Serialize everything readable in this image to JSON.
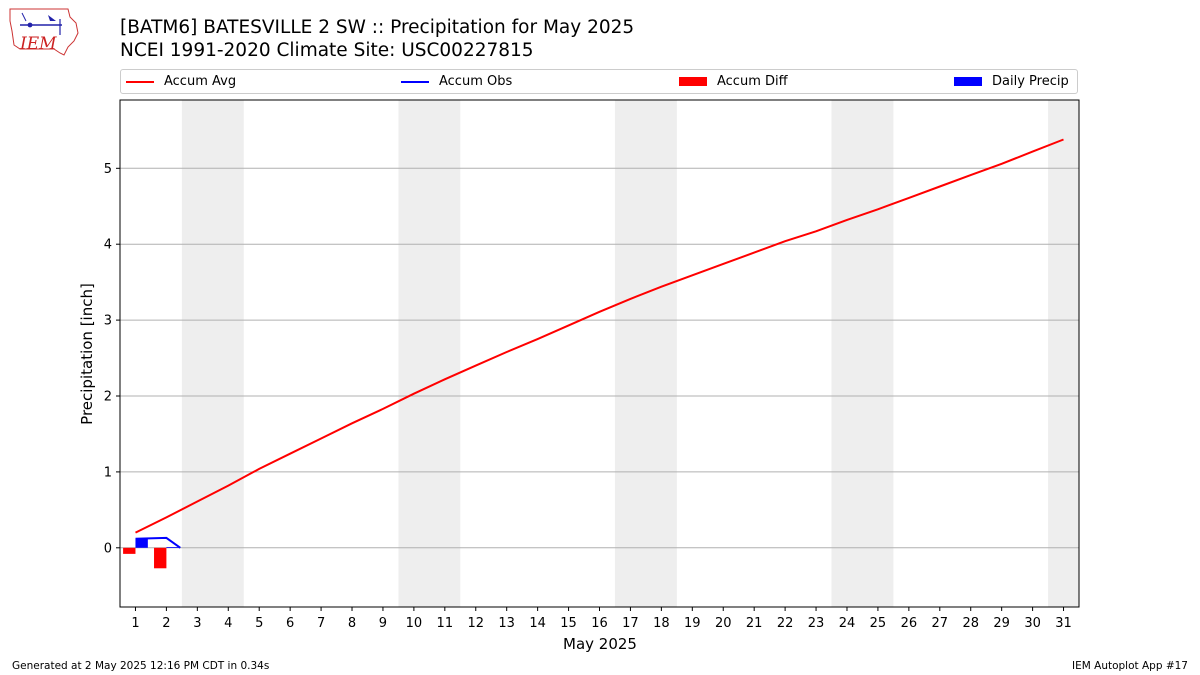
{
  "header": {
    "logo_text": "IEM",
    "title_line1": "[BATM6] BATESVILLE 2 SW :: Precipitation for May 2025",
    "title_line2": "NCEI 1991-2020 Climate Site: USC00227815"
  },
  "legend": {
    "placement": "top",
    "items": [
      {
        "label": "Accum Avg",
        "kind": "line",
        "color": "#ff0000"
      },
      {
        "label": "Accum Obs",
        "kind": "line",
        "color": "#0000ff"
      },
      {
        "label": "Accum Diff",
        "kind": "box",
        "color": "#ff0000"
      },
      {
        "label": "Daily Precip",
        "kind": "box",
        "color": "#0000ff"
      }
    ]
  },
  "footer": {
    "left": "Generated at 2 May 2025 12:16 PM CDT in 0.34s",
    "right": "IEM Autoplot App #17"
  },
  "chart_data": {
    "type": "line",
    "title": "[BATM6] BATESVILLE 2 SW :: Precipitation for May 2025",
    "subtitle": "NCEI 1991-2020 Climate Site: USC00227815",
    "xlabel": "May 2025",
    "ylabel": "Precipitation [inch]",
    "xlim": [
      0.5,
      31.5
    ],
    "ylim": [
      -0.78,
      5.9
    ],
    "x_ticks": [
      1,
      2,
      3,
      4,
      5,
      6,
      7,
      8,
      9,
      10,
      11,
      12,
      13,
      14,
      15,
      16,
      17,
      18,
      19,
      20,
      21,
      22,
      23,
      24,
      25,
      26,
      27,
      28,
      29,
      30,
      31
    ],
    "y_ticks": [
      0,
      1,
      2,
      3,
      4,
      5
    ],
    "grid": {
      "y": true,
      "x": false
    },
    "weekend_shading": [
      [
        2.5,
        4.5
      ],
      [
        9.5,
        11.5
      ],
      [
        16.5,
        18.5
      ],
      [
        23.5,
        25.5
      ],
      [
        30.5,
        31.5
      ]
    ],
    "shading_color": "#eeeeee",
    "colors": {
      "avg": "#ff0000",
      "obs": "#0000ff",
      "diff": "#ff0000",
      "daily": "#0000ff"
    },
    "series": [
      {
        "name": "Accum Avg",
        "kind": "line",
        "x": [
          1,
          2,
          3,
          4,
          5,
          6,
          7,
          8,
          9,
          10,
          11,
          12,
          13,
          14,
          15,
          16,
          17,
          18,
          19,
          20,
          21,
          22,
          23,
          24,
          25,
          26,
          27,
          28,
          29,
          30,
          31
        ],
        "values": [
          0.2,
          0.4,
          0.61,
          0.82,
          1.04,
          1.24,
          1.44,
          1.64,
          1.83,
          2.03,
          2.22,
          2.4,
          2.58,
          2.75,
          2.93,
          3.11,
          3.28,
          3.44,
          3.59,
          3.74,
          3.89,
          4.04,
          4.17,
          4.32,
          4.46,
          4.61,
          4.76,
          4.91,
          5.06,
          5.22,
          5.38
        ]
      },
      {
        "name": "Accum Obs",
        "kind": "line",
        "x": [
          1,
          2,
          2.45
        ],
        "values": [
          0.12,
          0.13,
          0.0
        ]
      },
      {
        "name": "Accum Diff",
        "kind": "bar",
        "x": [
          1,
          2
        ],
        "values": [
          -0.08,
          -0.27
        ]
      },
      {
        "name": "Daily Precip",
        "kind": "bar",
        "x": [
          1,
          2
        ],
        "values": [
          0.12,
          0.01
        ]
      }
    ]
  }
}
